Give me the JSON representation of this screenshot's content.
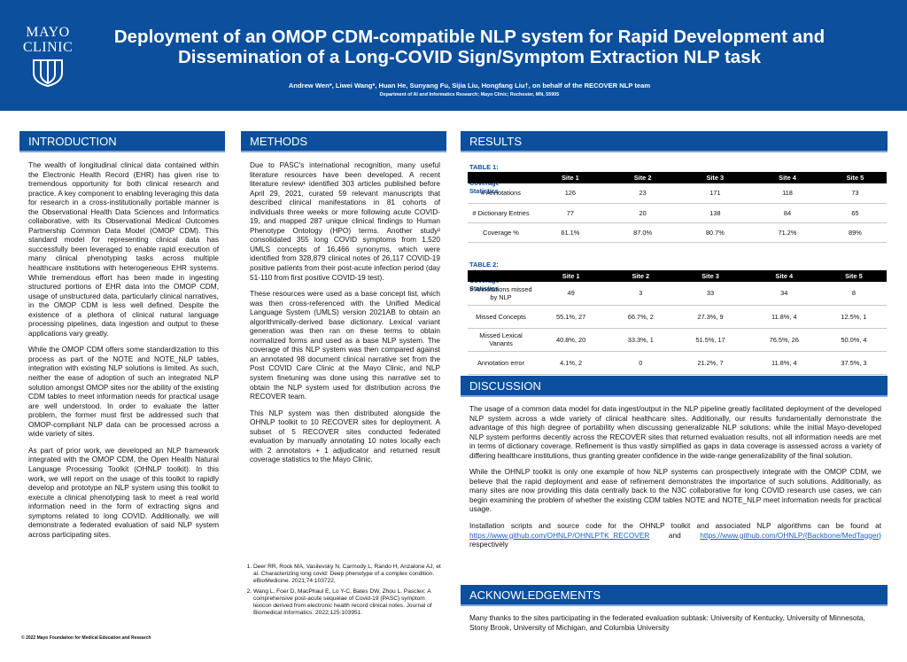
{
  "header": {
    "logo": [
      "MAYO",
      "CLINIC"
    ],
    "title": "Deployment of an OMOP CDM-compatible NLP system for Rapid Development and Dissemination of a Long-COVID Sign/Symptom Extraction NLP task",
    "authors": "Andrew Wen*, Liwei Wang*, Huan He, Sunyang Fu, Sijia Liu, Hongfang Liu†, on behalf of the RECOVER NLP team",
    "affiliation": "Department of AI and Informatics Research; Mayo Clinic; Rochester, MN, 55905"
  },
  "introduction": {
    "heading": "INTRODUCTION",
    "paragraphs": [
      "The wealth of longitudinal clinical data contained within the Electronic Health Record (EHR) has given rise to tremendous opportunity for both clinical research and practice. A key component to enabling leveraging this data for research in a cross-institutionally portable manner is the Observational Health Data Sciences and Informatics collaborative, with its Observational Medical Outcomes Partnership Common Data Model (OMOP CDM). This standard model for representing clinical data has successfully been leveraged to enable rapid execution of many clinical phenotyping tasks across multiple healthcare institutions with heterogeneous EHR systems. While tremendous effort has been made in ingesting structured portions of EHR data into the OMOP CDM, usage of unstructured data, particularly clinical narratives, in the OMOP CDM is less well defined. Despite the existence of a plethora of clinical natural language processing pipelines, data ingestion and output to these applications vary greatly.",
      "While the OMOP CDM offers some standardization to this process as part of the NOTE and NOTE_NLP tables, integration with existing NLP solutions is limited. As such, neither the ease of adoption of such an integrated NLP solution amongst OMOP sites nor the ability of the existing CDM tables to meet information needs for practical usage are well understood. In order to evaluate the latter problem, the former must first be addressed such that OMOP-compliant NLP data can be processed across a wide variety of sites.",
      "As part of prior work, we developed an NLP framework integrated with the OMOP CDM, the Open Health Natural Language Processing Toolkit (OHNLP toolkit). In this work, we will report on the usage of this toolkit to rapidly develop and prototype an NLP system using this toolkit to execute a clinical phenotyping task to meet a real world information need in the form of extracting signs and symptoms related to long COVID. Additionally, we will demonstrate a federated evaluation of said NLP system across participating sites."
    ]
  },
  "methods": {
    "heading": "METHODS",
    "paragraphs": [
      "Due to PASC's international recognition, many useful literature resources have been developed. A recent literature review¹ identified 303 articles published before April 29, 2021, curated 59 relevant manuscripts that described clinical manifestations in 81 cohorts of individuals three weeks or more following acute COVID-19, and mapped 287 unique clinical findings to Human Phenotype Ontology (HPO) terms. Another study² consolidated 355 long COVID symptoms from 1,520 UMLS concepts of 16,466 synonyms, which were identified from 328,879 clinical notes of 26,117 COVID-19 positive patients from their post-acute infection period (day 51-110 from first positive COVID-19 test).",
      "These resources were used as a base concept list, which was then cross-referenced with the Unified Medical Language System (UMLS) version 2021AB to obtain an algorithmically-derived base dictionary. Lexical variant generation was then ran on these terms to obtain normalized forms and used as a base NLP system. The coverage of this NLP system was then compared against an annotated 98 document clinical narrative set from the Post COVID Care Clinic at the Mayo Clinic, and NLP system finetuning was done using this narrative set to obtain the NLP system used for distribution across the RECOVER team.",
      "This NLP system was then distributed alongside the OHNLP toolkit to 10 RECOVER sites for deployment. A subset of 5 RECOVER sites conducted federated evaluation by manually annotating 10 notes locally each with 2 annotators + 1 adjudicator and returned result coverage statistics to the Mayo Clinic."
    ],
    "references": [
      "Deer RR, Rock MA, Vasilevsky N, Carmody L, Rando H, Anzalone AJ, et al. Characterizing long covid: Deep phenotype of a complex condition. eBioMedicine. 2021;74:103722.",
      "Wang L, Foer D, MacPhaul E, Lo Y-C, Bates DW, Zhou L. Pasclex: A comprehensive post-acute sequelae of Covid-19 (PASC) symptom lexicon derived from electronic health record clinical notes. Journal of Biomedical Informatics. 2022;125:103951."
    ]
  },
  "results": {
    "heading": "RESULTS",
    "tables": [
      {
        "title": "TABLE 1: Dictionary Coverage Statistics",
        "columns": [
          "Site 1",
          "Site 2",
          "Site 3",
          "Site 4",
          "Site 5"
        ],
        "rows": [
          [
            "# Annotations",
            126,
            23,
            171,
            118,
            73
          ],
          [
            "# Dictionary Entries",
            77,
            20,
            138,
            84,
            65
          ],
          [
            "Coverage %",
            "61.1%",
            "87.0%",
            "80.7%",
            "71.2%",
            "89%"
          ]
        ]
      },
      {
        "title": "TABLE 2: Dictionary Coverage Statistics",
        "columns": [
          "Site 1",
          "Site 2",
          "Site 3",
          "Site 4",
          "Site 5"
        ],
        "rows": [
          [
            "# Annotations missed by NLP",
            49,
            3,
            33,
            34,
            8
          ],
          [
            "Missed Concepts",
            "55.1%, 27",
            "66.7%, 2",
            "27.3%, 9",
            "11.8%, 4",
            "12.5%, 1"
          ],
          [
            "Missed Lexical Variants",
            "40.8%, 20",
            "33.3%, 1",
            "51.5%, 17",
            "76.5%, 26",
            "50.0%, 4"
          ],
          [
            "Annotation error",
            "4.1%, 2",
            0,
            "21.2%, 7",
            "11.8%, 4",
            "37.5%, 3"
          ]
        ]
      }
    ]
  },
  "discussion": {
    "heading": "DISCUSSION",
    "paragraphs": [
      "The usage of a common data model for data ingest/output in the NLP pipeline greatly facilitated deployment of the developed NLP system across a wide variety of clinical healthcare sites. Additionally, our results fundamentally demonstrate the advantage of this high degree of portability when discussing generalizable NLP solutions: while the initial Mayo-developed NLP system performs decently across the RECOVER sites that returned evaluation results, not all information needs are met in terms of dictionary coverage. Refinement is thus vastly simplified as gaps in data coverage is assessed across a variety of differing healthcare institutions, thus granting greater confidence in the wide-range generalizability of the final solution.",
      "While the OHNLP toolkit is only one example of how NLP systems can prospectively integrate with the OMOP CDM, we believe that the rapid deployment and ease of refinement demonstrates the importance of such solutions. Additionally, as many sites are now providing this data centrally back to the N3C collaborative for long COVID research use cases, we can begin examining the problem of whether the existing CDM tables NOTE and NOTE_NLP meet information needs for practical usage."
    ],
    "links_text": "Installation scripts and source code for the OHNLP toolkit and associated NLP algorithms can be found at",
    "links": [
      "https://www.github.com/OHNLP/OHNLPTK_RECOVER",
      "https://www.github.com/OHNLP/{Backbone/MedTagger}"
    ],
    "and": "and",
    "respectively": "respectively"
  },
  "acknowledgements": {
    "heading": "ACKNOWLEDGEMENTS",
    "text": "Many thanks to the sites participating in the federated evaluation subtask: University of Kentucky, University of Minnesota, Stony Brook, University of Michigan, and Columbia University"
  },
  "footer": "© 2022 Mayo Foundation for Medical Education and Research"
}
